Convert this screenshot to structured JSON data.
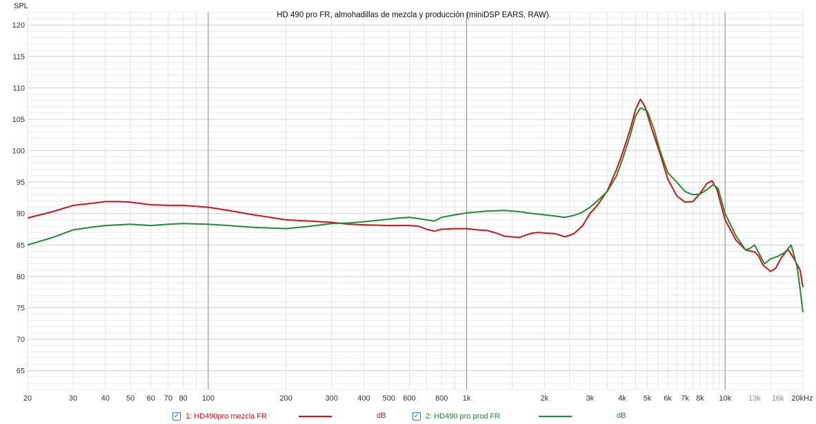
{
  "chart_data": {
    "type": "line",
    "title": "HD 490 pro FR, almohadillas de mezcla y producción (miniDSP EARS, RAW).",
    "ylabel": "SPL",
    "xlabel": "",
    "x_scale": "log",
    "xlim": [
      20,
      20000
    ],
    "ylim": [
      62,
      122
    ],
    "y_ticks": [
      65,
      70,
      75,
      80,
      85,
      90,
      95,
      100,
      105,
      110,
      115,
      120
    ],
    "x_ticks": [
      {
        "v": 20,
        "label": "20"
      },
      {
        "v": 30,
        "label": "30"
      },
      {
        "v": 40,
        "label": "40"
      },
      {
        "v": 50,
        "label": "50"
      },
      {
        "v": 60,
        "label": "60"
      },
      {
        "v": 70,
        "label": "70"
      },
      {
        "v": 80,
        "label": "80"
      },
      {
        "v": 100,
        "label": "100"
      },
      {
        "v": 200,
        "label": "200"
      },
      {
        "v": 300,
        "label": "300"
      },
      {
        "v": 400,
        "label": "400"
      },
      {
        "v": 500,
        "label": "500"
      },
      {
        "v": 600,
        "label": "600"
      },
      {
        "v": 800,
        "label": "800"
      },
      {
        "v": 1000,
        "label": "1k"
      },
      {
        "v": 2000,
        "label": "2k"
      },
      {
        "v": 3000,
        "label": "3k"
      },
      {
        "v": 4000,
        "label": "4k"
      },
      {
        "v": 5000,
        "label": "5k"
      },
      {
        "v": 6000,
        "label": "6k"
      },
      {
        "v": 7000,
        "label": "7k"
      },
      {
        "v": 8000,
        "label": "8k"
      },
      {
        "v": 10000,
        "label": "10k"
      },
      {
        "v": 13000,
        "label": "13k"
      },
      {
        "v": 16000,
        "label": "16k"
      },
      {
        "v": 20000,
        "label": "20kHz"
      }
    ],
    "grid": true,
    "series": [
      {
        "name": "1: HD490pro mezcla FR",
        "unit": "dB",
        "color": "#cc1414",
        "points": [
          [
            20,
            89.3
          ],
          [
            25,
            90.3
          ],
          [
            30,
            91.3
          ],
          [
            35,
            91.6
          ],
          [
            40,
            91.9
          ],
          [
            45,
            91.9
          ],
          [
            50,
            91.8
          ],
          [
            60,
            91.4
          ],
          [
            70,
            91.3
          ],
          [
            80,
            91.3
          ],
          [
            100,
            91.0
          ],
          [
            120,
            90.5
          ],
          [
            150,
            89.8
          ],
          [
            200,
            89.0
          ],
          [
            250,
            88.8
          ],
          [
            300,
            88.6
          ],
          [
            350,
            88.3
          ],
          [
            400,
            88.2
          ],
          [
            500,
            88.1
          ],
          [
            600,
            88.1
          ],
          [
            650,
            88.0
          ],
          [
            700,
            87.5
          ],
          [
            750,
            87.2
          ],
          [
            800,
            87.5
          ],
          [
            900,
            87.6
          ],
          [
            1000,
            87.6
          ],
          [
            1100,
            87.4
          ],
          [
            1200,
            87.3
          ],
          [
            1300,
            86.9
          ],
          [
            1400,
            86.4
          ],
          [
            1500,
            86.3
          ],
          [
            1600,
            86.2
          ],
          [
            1700,
            86.6
          ],
          [
            1800,
            86.9
          ],
          [
            1900,
            87.0
          ],
          [
            2000,
            86.9
          ],
          [
            2200,
            86.8
          ],
          [
            2400,
            86.3
          ],
          [
            2600,
            86.8
          ],
          [
            2800,
            88.0
          ],
          [
            3000,
            90.0
          ],
          [
            3200,
            91.3
          ],
          [
            3500,
            93.6
          ],
          [
            3800,
            97.0
          ],
          [
            4000,
            99.5
          ],
          [
            4300,
            103.5
          ],
          [
            4500,
            106.5
          ],
          [
            4700,
            108.2
          ],
          [
            4900,
            107.0
          ],
          [
            5200,
            103.5
          ],
          [
            5600,
            99.5
          ],
          [
            6000,
            95.5
          ],
          [
            6500,
            92.8
          ],
          [
            7000,
            91.8
          ],
          [
            7500,
            91.9
          ],
          [
            8000,
            93.2
          ],
          [
            8500,
            94.8
          ],
          [
            8900,
            95.2
          ],
          [
            9300,
            93.8
          ],
          [
            10000,
            89.0
          ],
          [
            11000,
            85.8
          ],
          [
            12000,
            84.2
          ],
          [
            13000,
            83.9
          ],
          [
            13500,
            83.2
          ],
          [
            14000,
            81.8
          ],
          [
            15000,
            80.8
          ],
          [
            15700,
            81.3
          ],
          [
            16500,
            83.0
          ],
          [
            17500,
            84.3
          ],
          [
            18500,
            82.8
          ],
          [
            19500,
            81.0
          ],
          [
            20000,
            78.3
          ]
        ]
      },
      {
        "name": "2: HD490 pro prod FR",
        "unit": "dB",
        "color": "#1e8c2e",
        "points": [
          [
            20,
            85.0
          ],
          [
            25,
            86.2
          ],
          [
            30,
            87.4
          ],
          [
            35,
            87.8
          ],
          [
            40,
            88.1
          ],
          [
            50,
            88.3
          ],
          [
            60,
            88.1
          ],
          [
            70,
            88.3
          ],
          [
            80,
            88.4
          ],
          [
            100,
            88.3
          ],
          [
            120,
            88.1
          ],
          [
            150,
            87.8
          ],
          [
            200,
            87.6
          ],
          [
            250,
            88.0
          ],
          [
            300,
            88.4
          ],
          [
            350,
            88.5
          ],
          [
            400,
            88.7
          ],
          [
            500,
            89.1
          ],
          [
            550,
            89.3
          ],
          [
            600,
            89.4
          ],
          [
            650,
            89.2
          ],
          [
            700,
            89.0
          ],
          [
            750,
            88.8
          ],
          [
            800,
            89.4
          ],
          [
            900,
            89.8
          ],
          [
            1000,
            90.1
          ],
          [
            1200,
            90.4
          ],
          [
            1400,
            90.5
          ],
          [
            1600,
            90.3
          ],
          [
            1800,
            90.0
          ],
          [
            2000,
            89.8
          ],
          [
            2200,
            89.6
          ],
          [
            2400,
            89.4
          ],
          [
            2600,
            89.7
          ],
          [
            2800,
            90.2
          ],
          [
            3000,
            91.0
          ],
          [
            3200,
            92.0
          ],
          [
            3500,
            93.5
          ],
          [
            3800,
            96.0
          ],
          [
            4000,
            98.5
          ],
          [
            4300,
            102.5
          ],
          [
            4500,
            105.5
          ],
          [
            4700,
            106.8
          ],
          [
            5000,
            106.3
          ],
          [
            5300,
            103.5
          ],
          [
            5600,
            100.0
          ],
          [
            6000,
            96.5
          ],
          [
            6500,
            95.0
          ],
          [
            7000,
            93.5
          ],
          [
            7500,
            93.0
          ],
          [
            8000,
            93.1
          ],
          [
            8500,
            93.8
          ],
          [
            9000,
            94.6
          ],
          [
            9400,
            94.0
          ],
          [
            10000,
            90.0
          ],
          [
            11000,
            86.5
          ],
          [
            12000,
            84.2
          ],
          [
            12500,
            84.5
          ],
          [
            13000,
            85.0
          ],
          [
            13600,
            83.5
          ],
          [
            14200,
            82.0
          ],
          [
            15000,
            82.8
          ],
          [
            16000,
            83.2
          ],
          [
            17000,
            83.8
          ],
          [
            18000,
            85.0
          ],
          [
            19000,
            81.5
          ],
          [
            19500,
            78.0
          ],
          [
            20000,
            74.3
          ]
        ]
      }
    ]
  },
  "legend": {
    "items": [
      {
        "label": "1: HD490pro mezcla FR",
        "unit": "dB",
        "color": "#cc1414",
        "checked": true
      },
      {
        "label": "2: HD490 pro prod FR",
        "unit": "dB",
        "color": "#1e8c2e",
        "checked": true
      }
    ]
  }
}
